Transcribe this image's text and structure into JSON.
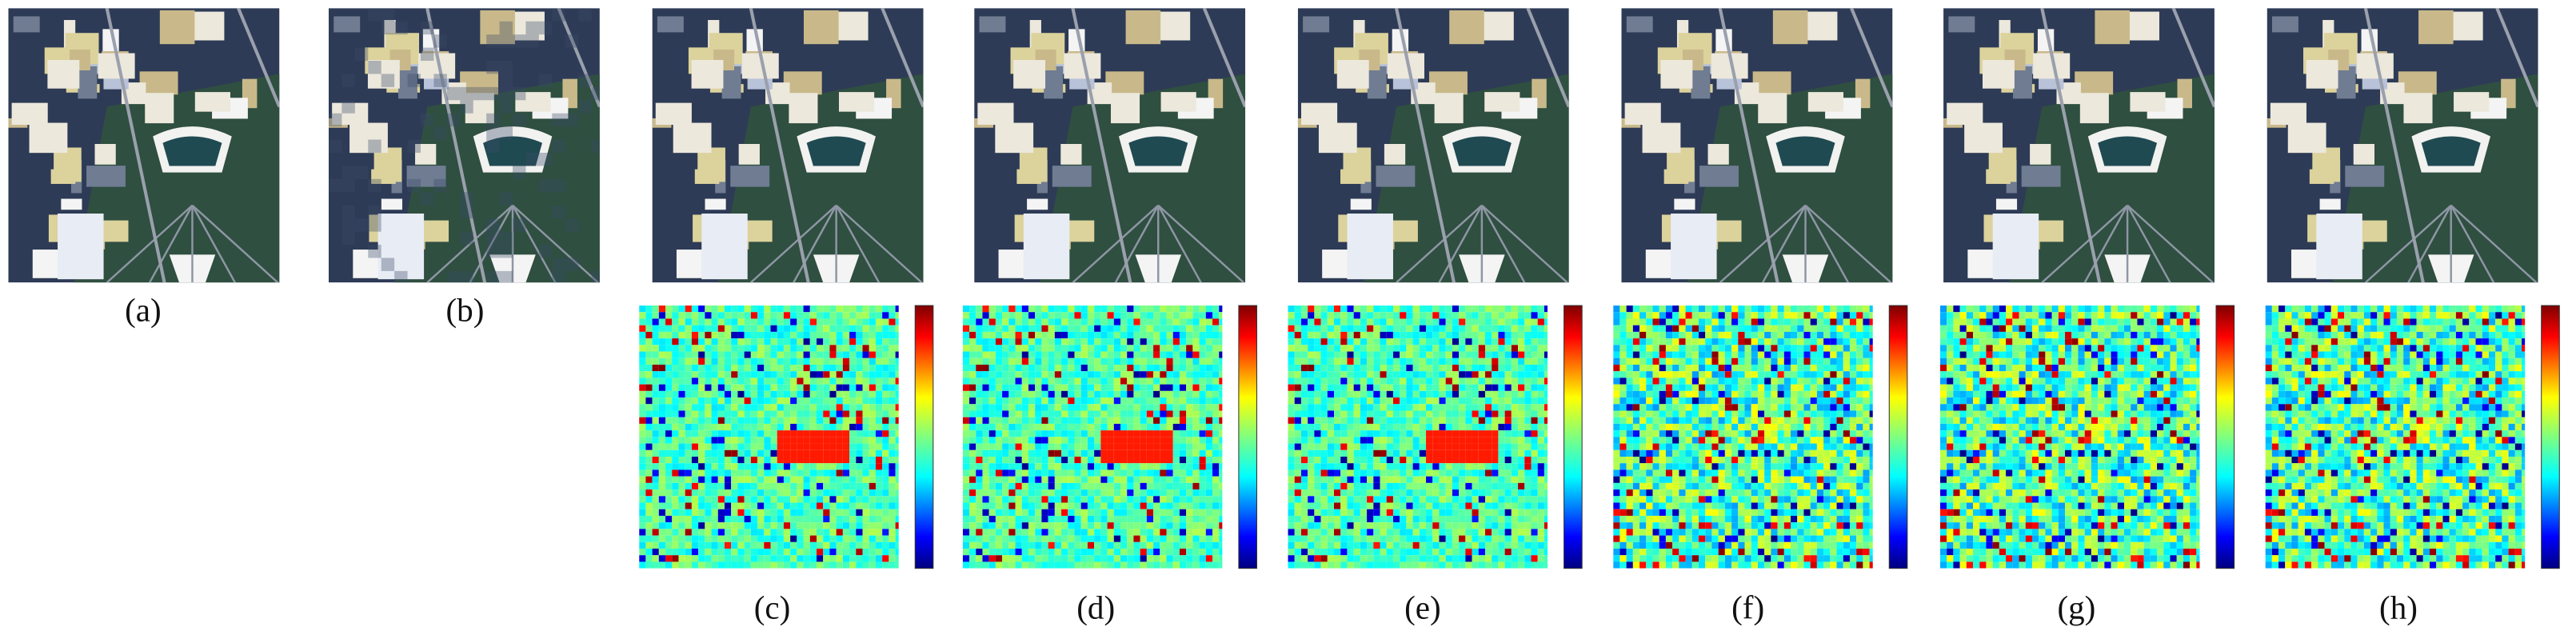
{
  "labels": [
    "(a)",
    "(b)",
    "(c)",
    "(d)",
    "(e)",
    "(f)",
    "(g)",
    "(h)"
  ]
}
